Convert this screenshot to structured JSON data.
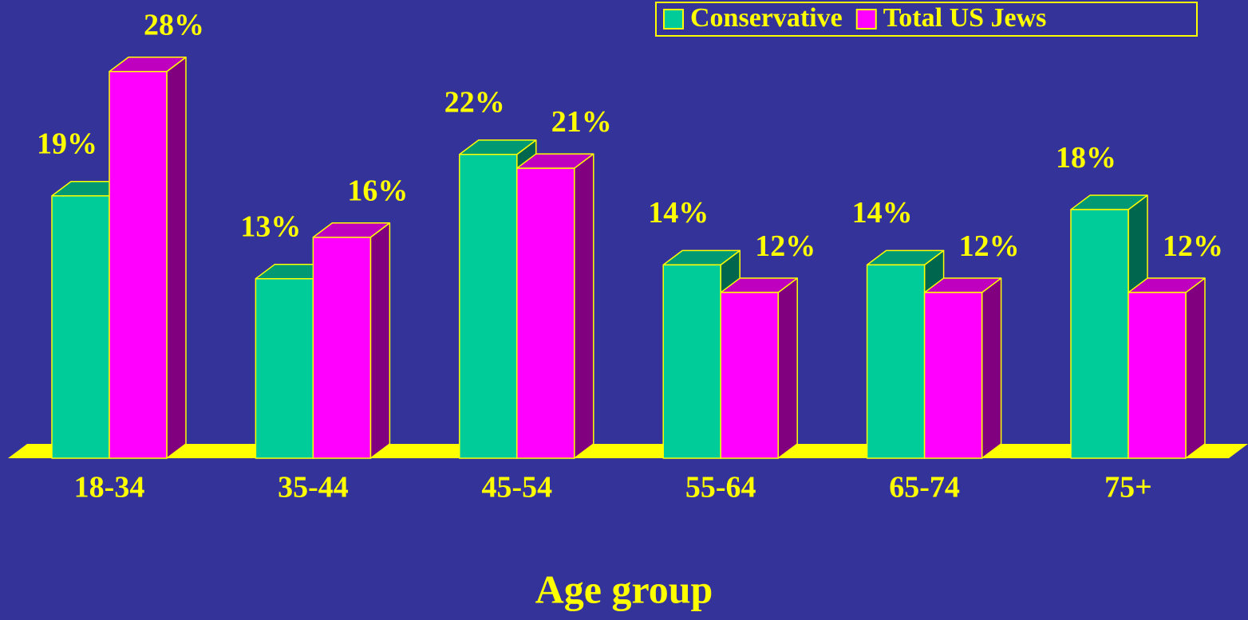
{
  "chart_data": {
    "type": "bar3d",
    "x_label": "Age group",
    "categories": [
      "18-34",
      "35-44",
      "45-54",
      "55-64",
      "65-74",
      "75+"
    ],
    "series": [
      {
        "name": "Conservative",
        "color": "#00CC99",
        "values": [
          19,
          13,
          22,
          14,
          14,
          18
        ],
        "value_labels": [
          "19%",
          "13%",
          "22%",
          "14%",
          "14%",
          "18%"
        ]
      },
      {
        "name": "Total US Jews",
        "color": "#FF00FF",
        "values": [
          28,
          16,
          21,
          12,
          12,
          12
        ],
        "value_labels": [
          "28%",
          "16%",
          "21%",
          "12%",
          "12%",
          "12%"
        ]
      }
    ],
    "legend": "top-right"
  }
}
